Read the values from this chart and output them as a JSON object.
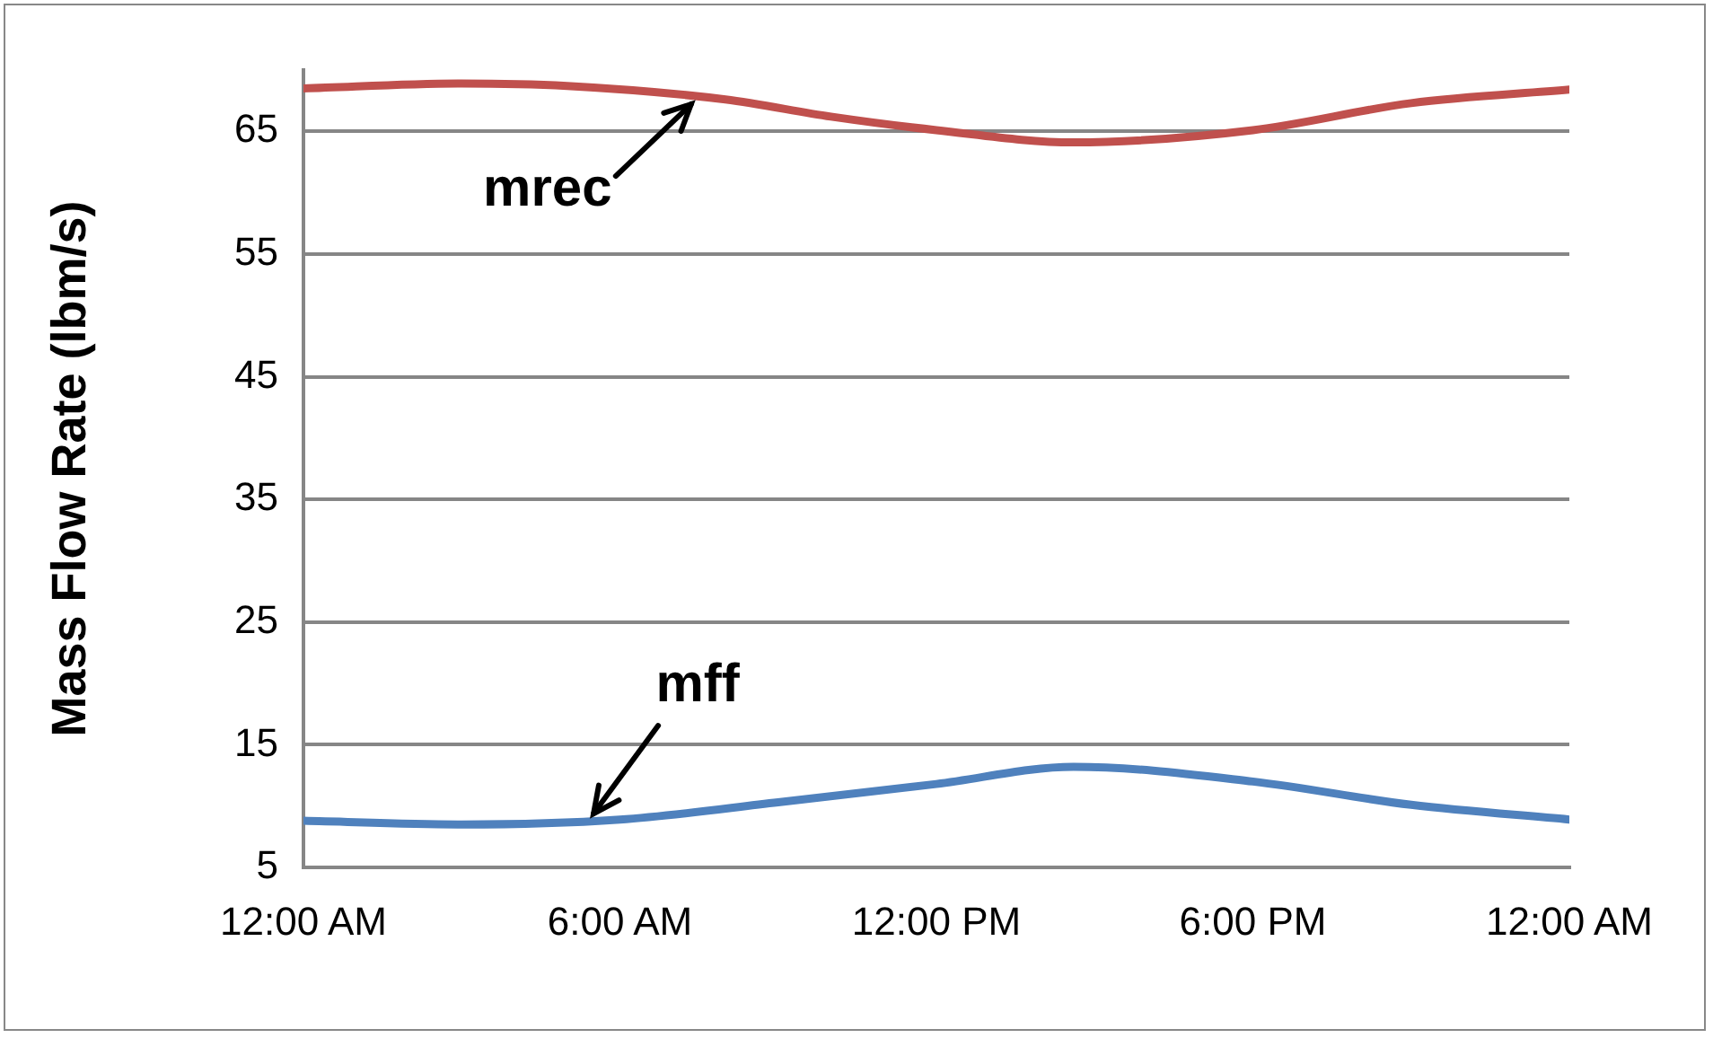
{
  "chart_data": {
    "type": "line",
    "ylabel": "Mass Flow Rate (lbm/s)",
    "xlim": [
      0,
      24
    ],
    "xticks": [
      {
        "value": 0,
        "label": "12:00 AM"
      },
      {
        "value": 6,
        "label": "6:00 AM"
      },
      {
        "value": 12,
        "label": "12:00 PM"
      },
      {
        "value": 18,
        "label": "6:00 PM"
      },
      {
        "value": 24,
        "label": "12:00 AM"
      }
    ],
    "ylim": [
      5,
      70
    ],
    "yticks": [
      5,
      15,
      25,
      35,
      45,
      55,
      65
    ],
    "series": [
      {
        "color": "#c0504d",
        "x": [
          0,
          3,
          5,
          8,
          10,
          12,
          14.6,
          18,
          21,
          24
        ],
        "values": [
          68.5,
          68.9,
          68.7,
          67.6,
          66.2,
          65.1,
          64.1,
          65.1,
          67.3,
          68.4
        ]
      },
      {
        "color": "#4f81bd",
        "x": [
          0,
          3,
          6,
          9,
          12,
          14.6,
          18,
          21,
          24
        ],
        "values": [
          8.8,
          8.5,
          8.9,
          10.3,
          11.8,
          13.2,
          12.0,
          10.1,
          8.9
        ]
      }
    ],
    "annotations": [
      {
        "text": "mrec",
        "x": 7.35,
        "y": 67.8
      },
      {
        "text": "mff",
        "x": 5.5,
        "y": 8.8
      }
    ],
    "grid": "y",
    "legend": false,
    "marker": "none",
    "line_style": "solid"
  }
}
